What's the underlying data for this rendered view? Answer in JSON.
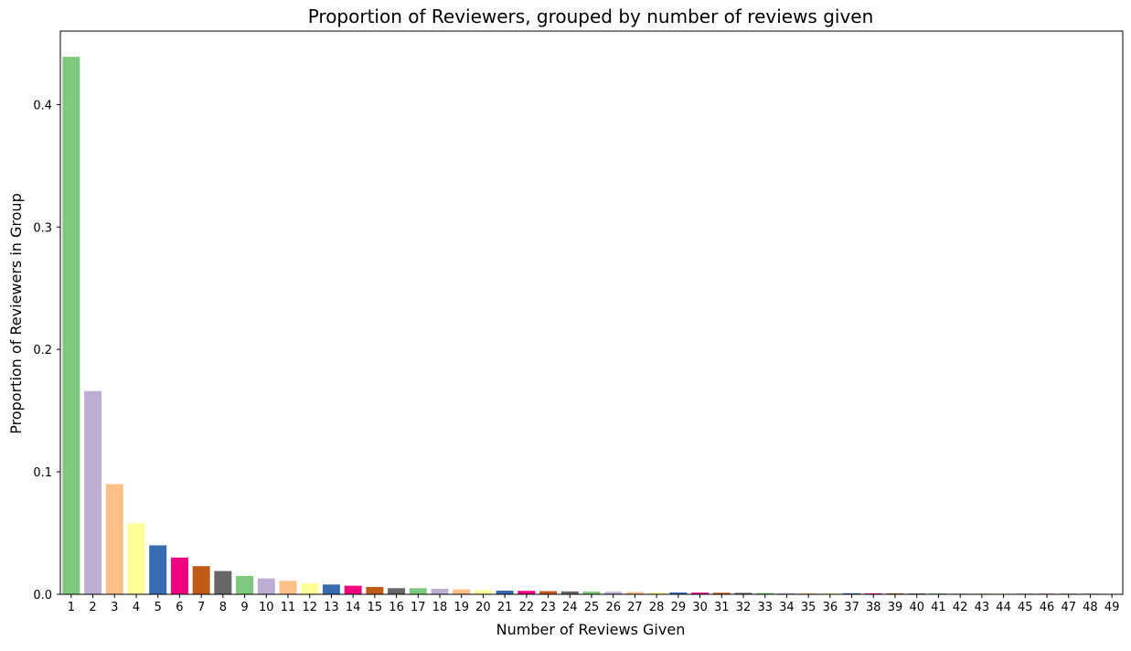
{
  "chart_data": {
    "type": "bar",
    "title": "Proportion of Reviewers, grouped by number of reviews given",
    "xlabel": "Number of Reviews Given",
    "ylabel": "Proportion of Reviewers in Group",
    "ylim": [
      0,
      0.46
    ],
    "yticks": [
      "0.0",
      "0.1",
      "0.2",
      "0.3",
      "0.4"
    ],
    "grid": false,
    "palette": [
      "#7fc97f",
      "#beaed4",
      "#fdc086",
      "#ffff99",
      "#386cb0",
      "#f0027f",
      "#bf5b17",
      "#666666"
    ],
    "categories": [
      "1",
      "2",
      "3",
      "4",
      "5",
      "6",
      "7",
      "8",
      "9",
      "10",
      "11",
      "12",
      "13",
      "14",
      "15",
      "16",
      "17",
      "18",
      "19",
      "20",
      "21",
      "22",
      "23",
      "24",
      "25",
      "26",
      "27",
      "28",
      "29",
      "30",
      "31",
      "32",
      "33",
      "34",
      "35",
      "36",
      "37",
      "38",
      "39",
      "40",
      "41",
      "42",
      "43",
      "44",
      "45",
      "46",
      "47",
      "48",
      "49"
    ],
    "values": [
      0.439,
      0.166,
      0.09,
      0.058,
      0.04,
      0.03,
      0.023,
      0.019,
      0.015,
      0.013,
      0.011,
      0.009,
      0.008,
      0.007,
      0.006,
      0.005,
      0.005,
      0.0045,
      0.004,
      0.0035,
      0.003,
      0.0028,
      0.0026,
      0.0024,
      0.0022,
      0.002,
      0.0018,
      0.0016,
      0.0015,
      0.0014,
      0.0013,
      0.0012,
      0.0011,
      0.001,
      0.001,
      0.0009,
      0.0009,
      0.0008,
      0.0008,
      0.0007,
      0.0007,
      0.0006,
      0.0006,
      0.0006,
      0.0005,
      0.0005,
      0.0005,
      0.0005,
      0.0004
    ]
  }
}
